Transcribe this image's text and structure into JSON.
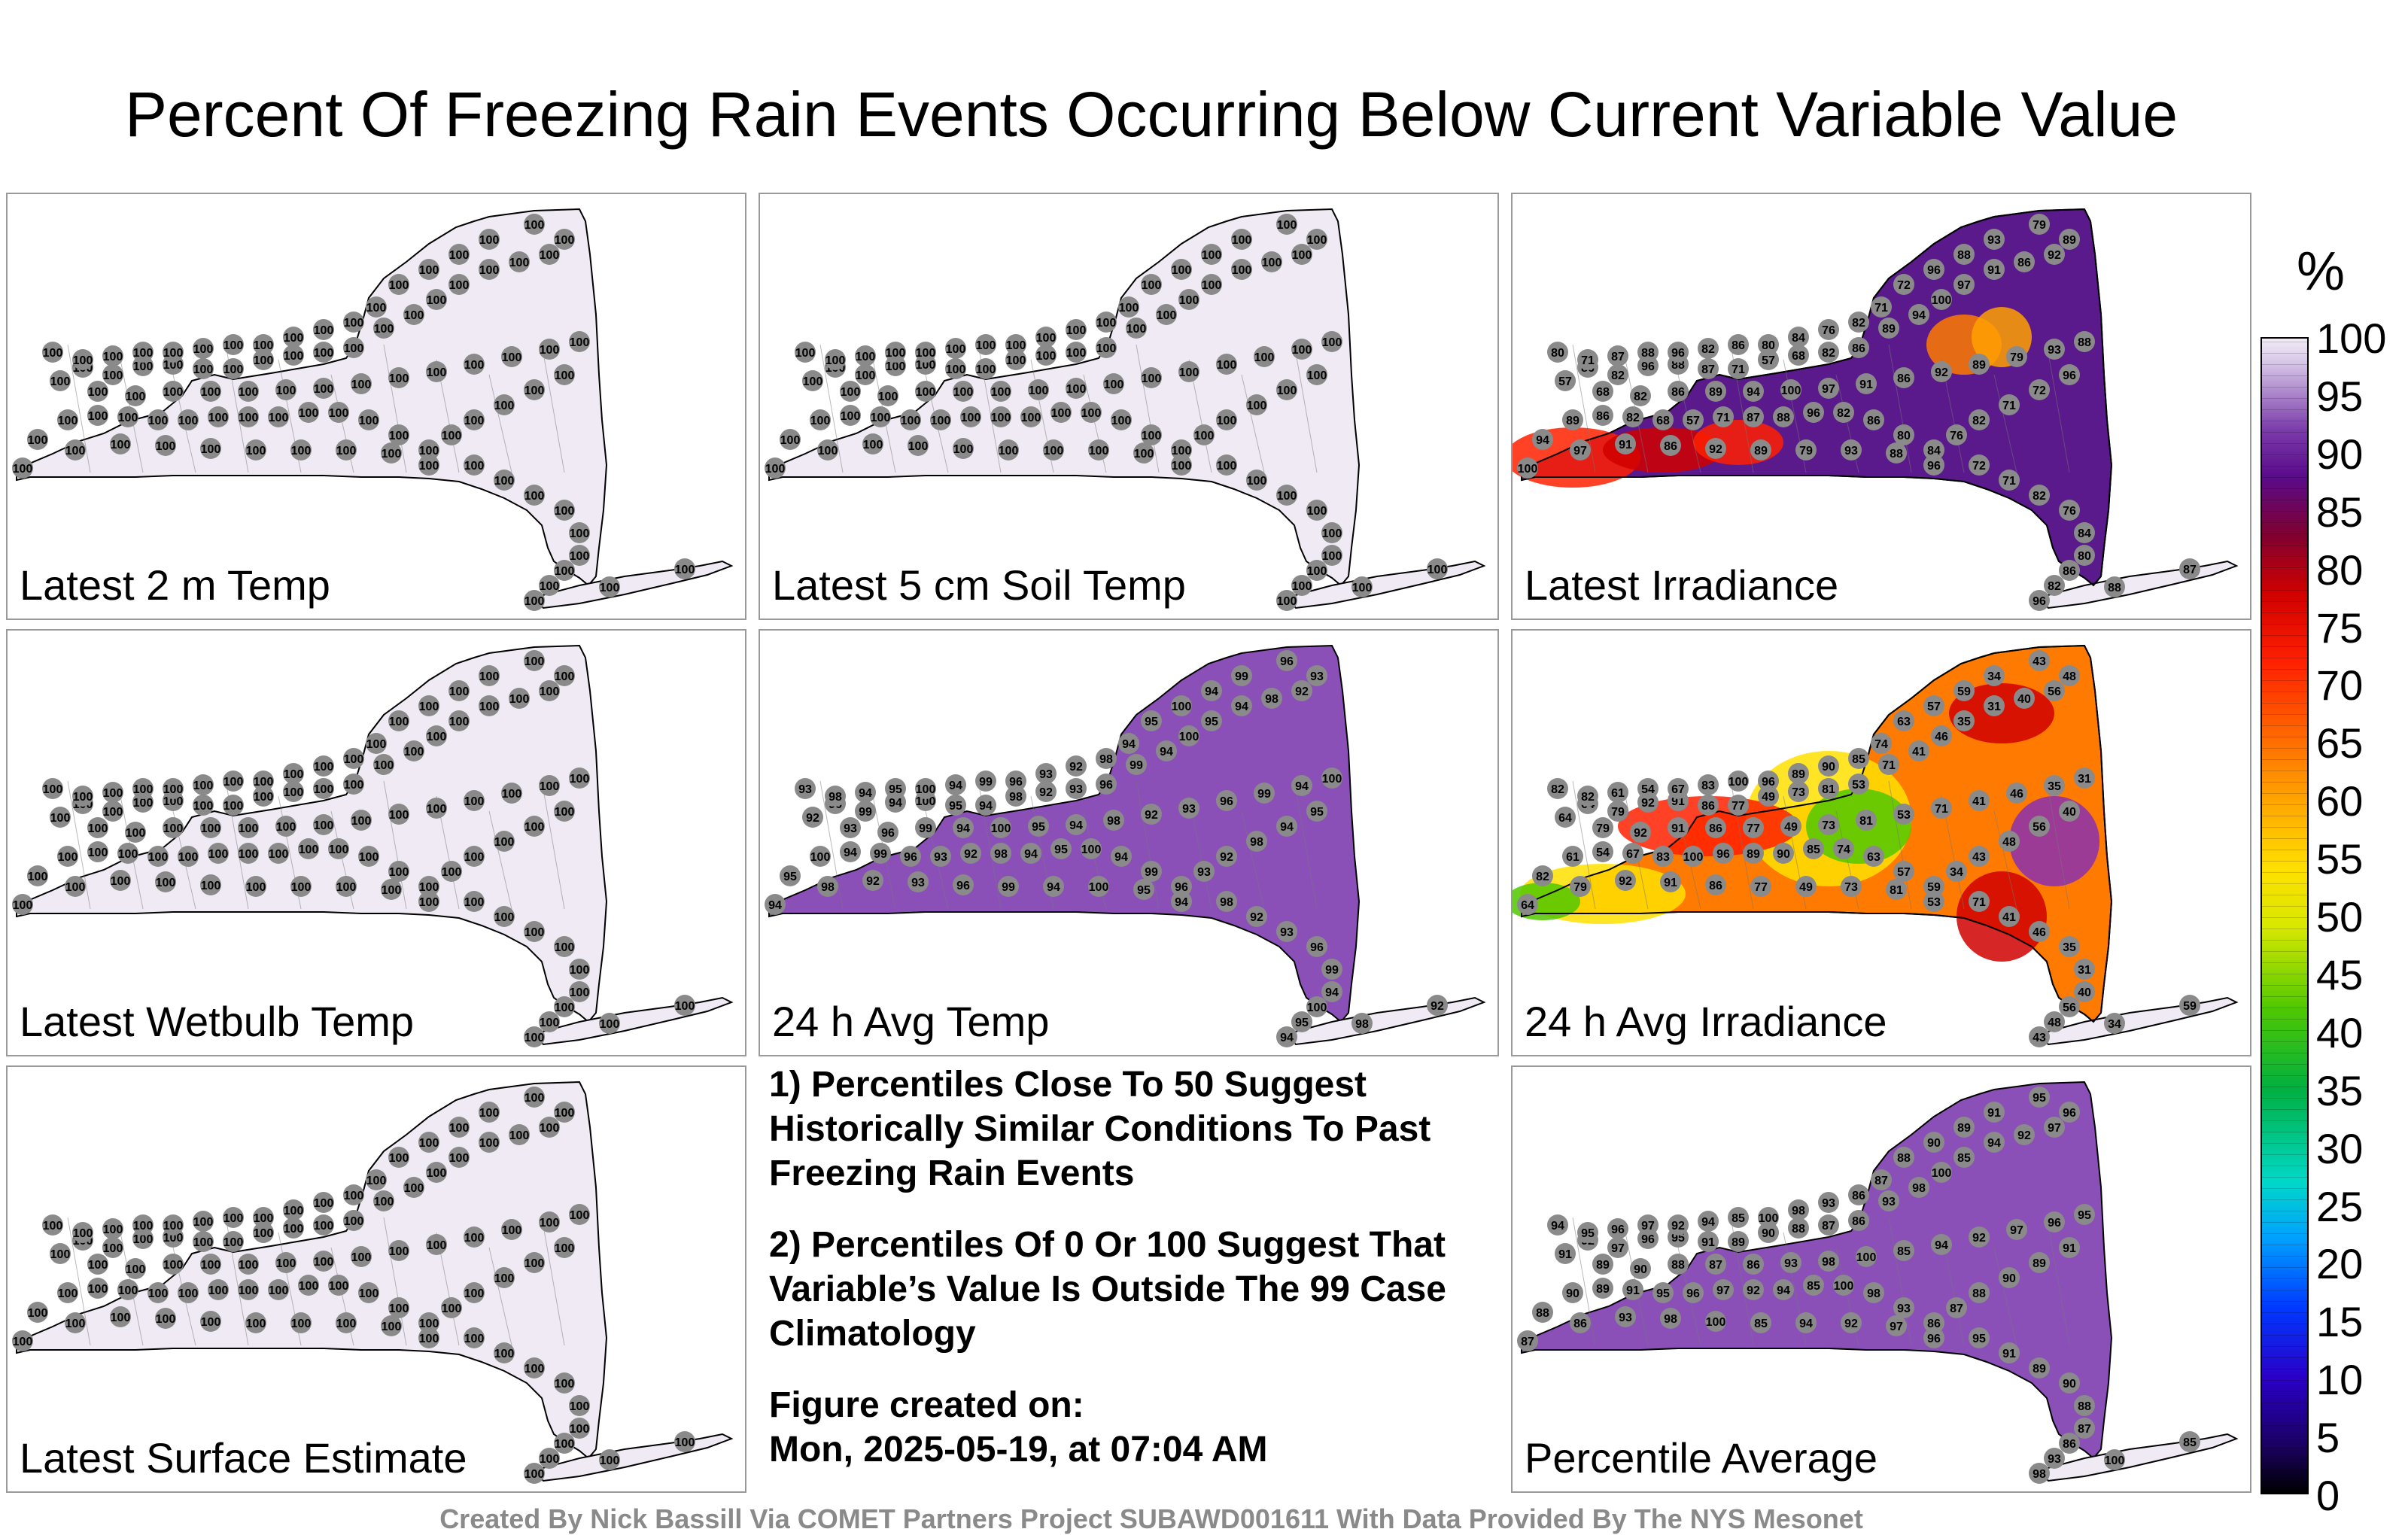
{
  "title": "Percent Of Freezing Rain Events Occurring Below Current Variable Value",
  "panels": [
    {
      "label": "Latest 2 m Temp",
      "fill": "#f0eaf5",
      "values": [
        100
      ]
    },
    {
      "label": "Latest 5 cm Soil Temp",
      "fill": "#f0eaf5",
      "values": [
        100
      ]
    },
    {
      "label": "Latest Irradiance",
      "fill": "#5b1a8c",
      "values": [
        80,
        86,
        82,
        96,
        88,
        87,
        71,
        57,
        68,
        82,
        86,
        89,
        94,
        100,
        97,
        91,
        86,
        92,
        89,
        79,
        93,
        88,
        96,
        72,
        71,
        82,
        76,
        84
      ]
    },
    {
      "label": "Latest Wetbulb Temp",
      "fill": "#f0eaf5",
      "values": [
        100
      ]
    },
    {
      "label": "24 h Avg Temp",
      "fill": "#8a50b8",
      "values": [
        93,
        96,
        99,
        94,
        100,
        95,
        94,
        98,
        92
      ]
    },
    {
      "label": "24 h Avg Irradiance",
      "fill": "#ff7a00",
      "values": [
        82,
        64,
        79,
        92,
        91,
        86,
        77,
        49,
        73,
        81,
        53,
        71,
        41,
        46,
        35,
        31,
        40,
        56,
        48,
        43,
        34,
        59,
        57,
        63,
        74,
        85,
        90,
        89,
        96,
        100,
        83,
        67,
        54,
        61
      ]
    },
    {
      "label": "Percentile Average",
      "fill": "#8a50b8",
      "values": [
        94,
        92,
        97,
        96,
        95,
        91,
        89,
        90,
        88,
        87,
        86,
        93,
        98,
        100,
        85
      ]
    }
  ],
  "notes": [
    "1) Percentiles Close To 50 Suggest Historically Similar Conditions To Past Freezing Rain Events",
    "2) Percentiles Of 0 Or 100 Suggest That Variable’s Value Is Outside The 99 Case Climatology",
    "Figure created on:",
    "Mon, 2025-05-19, at 07:04 AM"
  ],
  "colorbar": {
    "unit": "%",
    "ticks": [
      100,
      95,
      90,
      85,
      80,
      75,
      70,
      65,
      60,
      55,
      50,
      45,
      40,
      35,
      30,
      25,
      20,
      15,
      10,
      5,
      0
    ]
  },
  "footer": "Created By Nick Bassill Via COMET Partners Project SUBAWD001611 With Data Provided By The NYS Mesonet"
}
